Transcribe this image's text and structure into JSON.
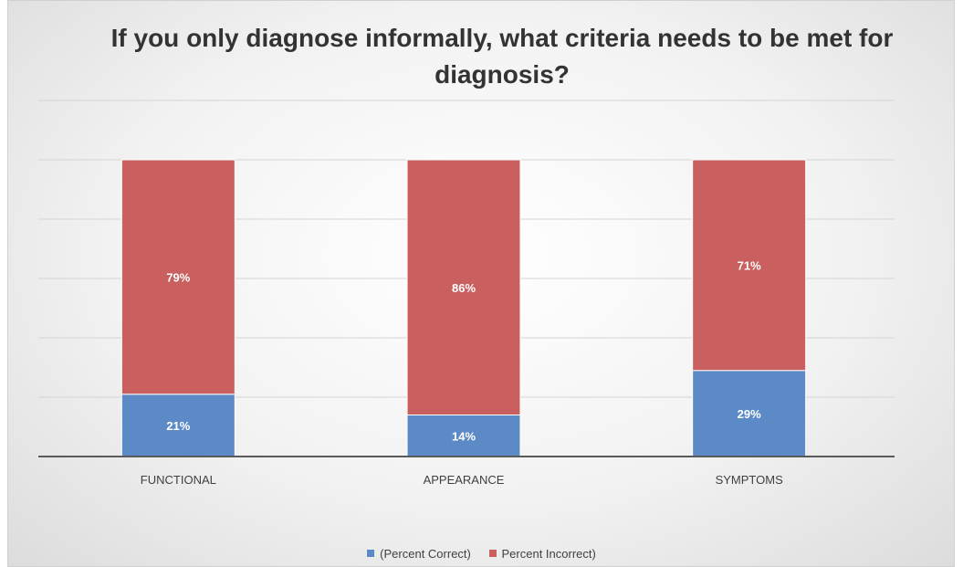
{
  "chart_data": {
    "type": "bar",
    "stacked": true,
    "title": "If you only diagnose informally, what criteria needs to be met for diagnosis?",
    "categories": [
      "FUNCTIONAL",
      "APPEARANCE",
      "SYMPTOMS"
    ],
    "series": [
      {
        "name": "(Percent Correct)",
        "values": [
          21,
          14,
          29
        ],
        "labels": [
          "21%",
          "14%",
          "29%"
        ],
        "color": "#5b8ac7"
      },
      {
        "name": "Percent Incorrect)",
        "values": [
          79,
          86,
          71
        ],
        "labels": [
          "79%",
          "86%",
          "71%"
        ],
        "color": "#c95f5e"
      }
    ],
    "ylim": [
      0,
      100
    ],
    "grid": true,
    "legend_position": "bottom"
  }
}
